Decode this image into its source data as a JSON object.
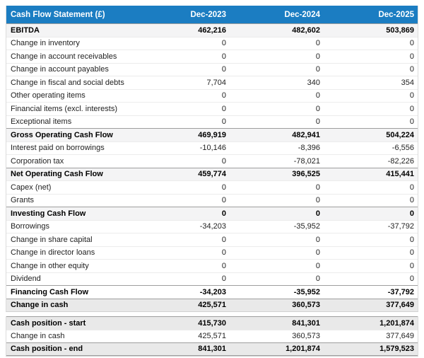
{
  "colors": {
    "header_background": "#1b7dc2",
    "header_text": "#ffffff",
    "subtotal_row_background": "#f4f4f5",
    "emphasis_row_background": "#e9e9e9",
    "strong_border": "#9e9e9e",
    "light_border": "#ececec",
    "body_text": "#222222"
  },
  "table": {
    "header": {
      "label": "Cash Flow Statement (£)",
      "columns": [
        "Dec-2023",
        "Dec-2024",
        "Dec-2025"
      ]
    },
    "sections": [
      {
        "rows": [
          {
            "label": "EBITDA",
            "values": [
              "462,216",
              "482,602",
              "503,869"
            ],
            "style": "subtotal"
          },
          {
            "label": "Change in inventory",
            "values": [
              "0",
              "0",
              "0"
            ],
            "style": "regular"
          },
          {
            "label": "Change in account receivables",
            "values": [
              "0",
              "0",
              "0"
            ],
            "style": "regular"
          },
          {
            "label": "Change in account payables",
            "values": [
              "0",
              "0",
              "0"
            ],
            "style": "regular"
          },
          {
            "label": "Change in fiscal and social debts",
            "values": [
              "7,704",
              "340",
              "354"
            ],
            "style": "regular"
          },
          {
            "label": "Other operating items",
            "values": [
              "0",
              "0",
              "0"
            ],
            "style": "regular"
          },
          {
            "label": "Financial items (excl. interests)",
            "values": [
              "0",
              "0",
              "0"
            ],
            "style": "regular"
          },
          {
            "label": "Exceptional items",
            "values": [
              "0",
              "0",
              "0"
            ],
            "style": "regular"
          },
          {
            "label": "Gross Operating Cash Flow",
            "values": [
              "469,919",
              "482,941",
              "504,224"
            ],
            "style": "subtotal"
          },
          {
            "label": "Interest paid on borrowings",
            "values": [
              "-10,146",
              "-8,396",
              "-6,556"
            ],
            "style": "regular"
          },
          {
            "label": "Corporation tax",
            "values": [
              "0",
              "-78,021",
              "-82,226"
            ],
            "style": "regular"
          },
          {
            "label": "Net Operating Cash Flow",
            "values": [
              "459,774",
              "396,525",
              "415,441"
            ],
            "style": "subtotal"
          },
          {
            "label": "Capex (net)",
            "values": [
              "0",
              "0",
              "0"
            ],
            "style": "regular"
          },
          {
            "label": "Grants",
            "values": [
              "0",
              "0",
              "0"
            ],
            "style": "regular"
          },
          {
            "label": "Investing Cash Flow",
            "values": [
              "0",
              "0",
              "0"
            ],
            "style": "subtotal"
          },
          {
            "label": "Borrowings",
            "values": [
              "-34,203",
              "-35,952",
              "-37,792"
            ],
            "style": "regular"
          },
          {
            "label": "Change in share capital",
            "values": [
              "0",
              "0",
              "0"
            ],
            "style": "regular"
          },
          {
            "label": "Change in director loans",
            "values": [
              "0",
              "0",
              "0"
            ],
            "style": "regular"
          },
          {
            "label": "Change in other equity",
            "values": [
              "0",
              "0",
              "0"
            ],
            "style": "regular"
          },
          {
            "label": "Dividend",
            "values": [
              "0",
              "0",
              "0"
            ],
            "style": "regular"
          },
          {
            "label": "Financing Cash Flow",
            "values": [
              "-34,203",
              "-35,952",
              "-37,792"
            ],
            "style": "boldwhite"
          },
          {
            "label": "Change in cash",
            "values": [
              "425,571",
              "360,573",
              "377,649"
            ],
            "style": "emphasis"
          }
        ]
      },
      {
        "rows": [
          {
            "label": "Cash position - start",
            "values": [
              "415,730",
              "841,301",
              "1,201,874"
            ],
            "style": "emphasis"
          },
          {
            "label": "Change in cash",
            "values": [
              "425,571",
              "360,573",
              "377,649"
            ],
            "style": "regular"
          },
          {
            "label": "Cash position - end",
            "values": [
              "841,301",
              "1,201,874",
              "1,579,523"
            ],
            "style": "emphasis"
          }
        ]
      }
    ]
  }
}
